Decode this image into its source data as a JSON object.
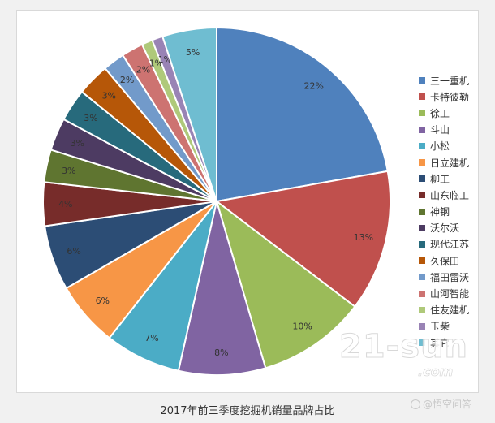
{
  "chart_data": {
    "type": "pie",
    "title": "",
    "caption": "2017年前三季度挖掘机销量品牌占比",
    "legend_position": "right",
    "slices": [
      {
        "label": "三一重机",
        "value": 22,
        "display": "22%",
        "color": "#4f81bd"
      },
      {
        "label": "卡特彼勒",
        "value": 13,
        "display": "13%",
        "color": "#c0504d"
      },
      {
        "label": "徐工",
        "value": 10,
        "display": "10%",
        "color": "#9bbb59"
      },
      {
        "label": "斗山",
        "value": 8,
        "display": "8%",
        "color": "#8064a2"
      },
      {
        "label": "小松",
        "value": 7,
        "display": "7%",
        "color": "#4bacc6"
      },
      {
        "label": "日立建机",
        "value": 6,
        "display": "6%",
        "color": "#f79646"
      },
      {
        "label": "柳工",
        "value": 6,
        "display": "6%",
        "color": "#2c4d75"
      },
      {
        "label": "山东临工",
        "value": 4,
        "display": "4%",
        "color": "#772c2a"
      },
      {
        "label": "神钢",
        "value": 3,
        "display": "3%",
        "color": "#5f7530"
      },
      {
        "label": "沃尔沃",
        "value": 3,
        "display": "3%",
        "color": "#4d3b62"
      },
      {
        "label": "现代江苏",
        "value": 3,
        "display": "3%",
        "color": "#276a7c"
      },
      {
        "label": "久保田",
        "value": 3,
        "display": "3%",
        "color": "#b65708"
      },
      {
        "label": "福田雷沃",
        "value": 2,
        "display": "2%",
        "color": "#729aca"
      },
      {
        "label": "山河智能",
        "value": 2,
        "display": "2%",
        "color": "#cd7371"
      },
      {
        "label": "住友建机",
        "value": 1,
        "display": "1%",
        "color": "#afc97a"
      },
      {
        "label": "玉柴",
        "value": 1,
        "display": "1%",
        "color": "#9983b5"
      },
      {
        "label": "其它",
        "value": 5,
        "display": "5%",
        "color": "#6fbdd1"
      }
    ]
  },
  "watermark": {
    "main": "21-sun",
    "sub": ".com",
    "site": "@悟空问答"
  }
}
